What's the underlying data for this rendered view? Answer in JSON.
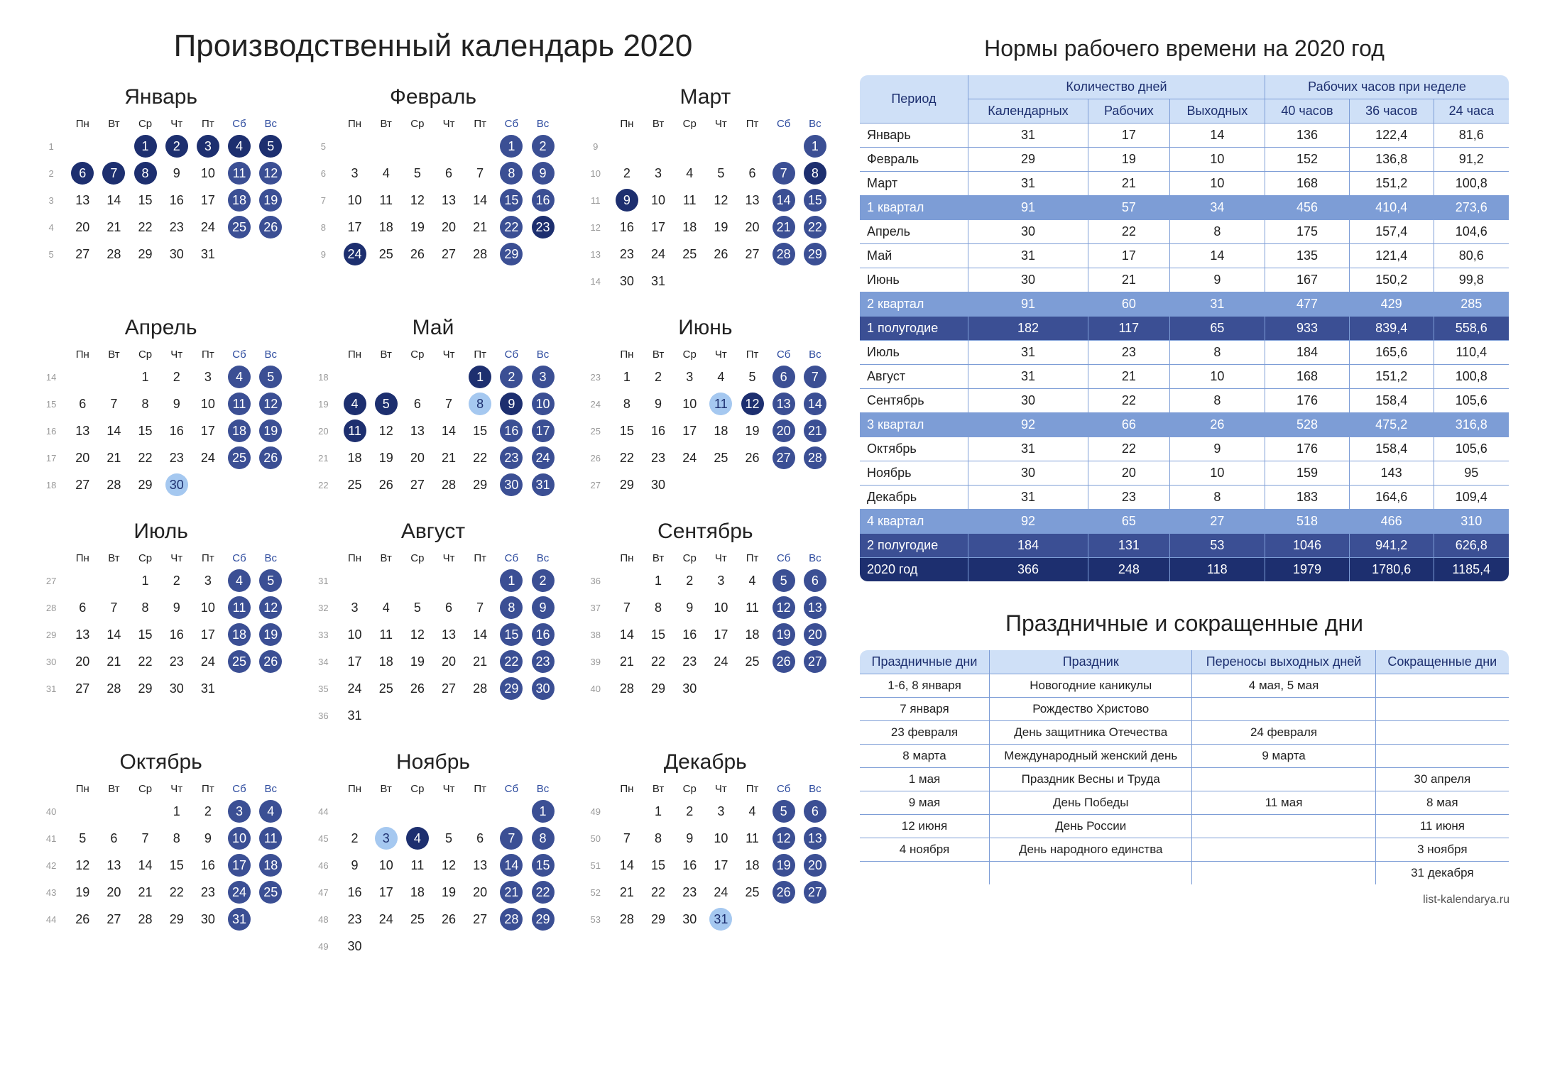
{
  "title": "Производственный календарь 2020",
  "normsTitle": "Нормы рабочего времени на 2020 год",
  "holidaysTitle": "Праздничные и сокращенные дни",
  "footer": "list-kalendarya.ru",
  "dowHeaders": [
    "Пн",
    "Вт",
    "Ср",
    "Чт",
    "Пт",
    "Сб",
    "Вс"
  ],
  "months": [
    {
      "name": "Январь",
      "firstDow": 2,
      "days": 31,
      "weekStart": 1,
      "holiday": [
        1,
        2,
        3,
        4,
        5,
        6,
        7,
        8
      ],
      "short": [],
      "weekend": [
        11,
        12,
        18,
        19,
        25,
        26
      ]
    },
    {
      "name": "Февраль",
      "firstDow": 5,
      "days": 29,
      "weekStart": 5,
      "holiday": [
        23,
        24
      ],
      "short": [],
      "weekend": [
        1,
        2,
        8,
        9,
        15,
        16,
        22,
        29
      ]
    },
    {
      "name": "Март",
      "firstDow": 6,
      "days": 31,
      "weekStart": 9,
      "holiday": [
        8,
        9
      ],
      "short": [],
      "weekend": [
        1,
        7,
        14,
        15,
        21,
        22,
        28,
        29
      ]
    },
    {
      "name": "Апрель",
      "firstDow": 2,
      "days": 30,
      "weekStart": 14,
      "holiday": [],
      "short": [
        30
      ],
      "weekend": [
        4,
        5,
        11,
        12,
        18,
        19,
        25,
        26
      ]
    },
    {
      "name": "Май",
      "firstDow": 4,
      "days": 31,
      "weekStart": 18,
      "holiday": [
        1,
        4,
        5,
        9,
        11
      ],
      "short": [
        8
      ],
      "weekend": [
        2,
        3,
        10,
        16,
        17,
        23,
        24,
        30,
        31
      ]
    },
    {
      "name": "Июнь",
      "firstDow": 0,
      "days": 30,
      "weekStart": 23,
      "holiday": [
        12
      ],
      "short": [
        11
      ],
      "weekend": [
        6,
        7,
        13,
        14,
        20,
        21,
        27,
        28
      ]
    },
    {
      "name": "Июль",
      "firstDow": 2,
      "days": 31,
      "weekStart": 27,
      "holiday": [],
      "short": [],
      "weekend": [
        4,
        5,
        11,
        12,
        18,
        19,
        25,
        26
      ]
    },
    {
      "name": "Август",
      "firstDow": 5,
      "days": 31,
      "weekStart": 31,
      "holiday": [],
      "short": [],
      "weekend": [
        1,
        2,
        8,
        9,
        15,
        16,
        22,
        23,
        29,
        30
      ]
    },
    {
      "name": "Сентябрь",
      "firstDow": 1,
      "days": 30,
      "weekStart": 36,
      "holiday": [],
      "short": [],
      "weekend": [
        5,
        6,
        12,
        13,
        19,
        20,
        26,
        27
      ]
    },
    {
      "name": "Октябрь",
      "firstDow": 3,
      "days": 31,
      "weekStart": 40,
      "holiday": [],
      "short": [],
      "weekend": [
        3,
        4,
        10,
        11,
        17,
        18,
        24,
        25,
        31
      ]
    },
    {
      "name": "Ноябрь",
      "firstDow": 6,
      "days": 30,
      "weekStart": 44,
      "holiday": [
        4
      ],
      "short": [
        3
      ],
      "weekend": [
        1,
        7,
        8,
        14,
        15,
        21,
        22,
        28,
        29
      ]
    },
    {
      "name": "Декабрь",
      "firstDow": 1,
      "days": 31,
      "weekStart": 49,
      "holiday": [],
      "short": [
        31
      ],
      "weekend": [
        5,
        6,
        12,
        13,
        19,
        20,
        26,
        27
      ]
    }
  ],
  "normsHeaders": {
    "period": "Период",
    "daysGroup": "Количество дней",
    "hoursGroup": "Рабочих часов при неделе",
    "cal": "Календарных",
    "work": "Рабочих",
    "off": "Выходных",
    "h40": "40 часов",
    "h36": "36 часов",
    "h24": "24 часа"
  },
  "norms": [
    {
      "t": "",
      "period": "Январь",
      "cal": "31",
      "work": "17",
      "off": "14",
      "h40": "136",
      "h36": "122,4",
      "h24": "81,6"
    },
    {
      "t": "",
      "period": "Февраль",
      "cal": "29",
      "work": "19",
      "off": "10",
      "h40": "152",
      "h36": "136,8",
      "h24": "91,2"
    },
    {
      "t": "",
      "period": "Март",
      "cal": "31",
      "work": "21",
      "off": "10",
      "h40": "168",
      "h36": "151,2",
      "h24": "100,8"
    },
    {
      "t": "q",
      "period": "1 квартал",
      "cal": "91",
      "work": "57",
      "off": "34",
      "h40": "456",
      "h36": "410,4",
      "h24": "273,6"
    },
    {
      "t": "",
      "period": "Апрель",
      "cal": "30",
      "work": "22",
      "off": "8",
      "h40": "175",
      "h36": "157,4",
      "h24": "104,6"
    },
    {
      "t": "",
      "period": "Май",
      "cal": "31",
      "work": "17",
      "off": "14",
      "h40": "135",
      "h36": "121,4",
      "h24": "80,6"
    },
    {
      "t": "",
      "period": "Июнь",
      "cal": "30",
      "work": "21",
      "off": "9",
      "h40": "167",
      "h36": "150,2",
      "h24": "99,8"
    },
    {
      "t": "q",
      "period": "2 квартал",
      "cal": "91",
      "work": "60",
      "off": "31",
      "h40": "477",
      "h36": "429",
      "h24": "285"
    },
    {
      "t": "half",
      "period": "1 полугодие",
      "cal": "182",
      "work": "117",
      "off": "65",
      "h40": "933",
      "h36": "839,4",
      "h24": "558,6"
    },
    {
      "t": "",
      "period": "Июль",
      "cal": "31",
      "work": "23",
      "off": "8",
      "h40": "184",
      "h36": "165,6",
      "h24": "110,4"
    },
    {
      "t": "",
      "period": "Август",
      "cal": "31",
      "work": "21",
      "off": "10",
      "h40": "168",
      "h36": "151,2",
      "h24": "100,8"
    },
    {
      "t": "",
      "period": "Сентябрь",
      "cal": "30",
      "work": "22",
      "off": "8",
      "h40": "176",
      "h36": "158,4",
      "h24": "105,6"
    },
    {
      "t": "q",
      "period": "3 квартал",
      "cal": "92",
      "work": "66",
      "off": "26",
      "h40": "528",
      "h36": "475,2",
      "h24": "316,8"
    },
    {
      "t": "",
      "period": "Октябрь",
      "cal": "31",
      "work": "22",
      "off": "9",
      "h40": "176",
      "h36": "158,4",
      "h24": "105,6"
    },
    {
      "t": "",
      "period": "Ноябрь",
      "cal": "30",
      "work": "20",
      "off": "10",
      "h40": "159",
      "h36": "143",
      "h24": "95"
    },
    {
      "t": "",
      "period": "Декабрь",
      "cal": "31",
      "work": "23",
      "off": "8",
      "h40": "183",
      "h36": "164,6",
      "h24": "109,4"
    },
    {
      "t": "q",
      "period": "4 квартал",
      "cal": "92",
      "work": "65",
      "off": "27",
      "h40": "518",
      "h36": "466",
      "h24": "310"
    },
    {
      "t": "half",
      "period": "2 полугодие",
      "cal": "184",
      "work": "131",
      "off": "53",
      "h40": "1046",
      "h36": "941,2",
      "h24": "626,8"
    },
    {
      "t": "year",
      "period": "2020 год",
      "cal": "366",
      "work": "248",
      "off": "118",
      "h40": "1979",
      "h36": "1780,6",
      "h24": "1185,4"
    }
  ],
  "holidaysHeaders": {
    "days": "Праздничные дни",
    "name": "Праздник",
    "moved": "Переносы выходных дней",
    "short": "Сокращенные дни"
  },
  "holidays": [
    {
      "days": "1-6, 8 января",
      "name": "Новогодние каникулы",
      "moved": "4 мая, 5 мая",
      "short": ""
    },
    {
      "days": "7 января",
      "name": "Рождество Христово",
      "moved": "",
      "short": ""
    },
    {
      "days": "23 февраля",
      "name": "День защитника Отечества",
      "moved": "24 февраля",
      "short": ""
    },
    {
      "days": "8 марта",
      "name": "Международный женский день",
      "moved": "9 марта",
      "short": ""
    },
    {
      "days": "1 мая",
      "name": "Праздник Весны и Труда",
      "moved": "",
      "short": "30 апреля"
    },
    {
      "days": "9 мая",
      "name": "День Победы",
      "moved": "11 мая",
      "short": "8 мая"
    },
    {
      "days": "12 июня",
      "name": "День России",
      "moved": "",
      "short": "11 июня"
    },
    {
      "days": "4 ноября",
      "name": "День народного единства",
      "moved": "",
      "short": "3 ноября"
    },
    {
      "days": "",
      "name": "",
      "moved": "",
      "short": "31 декабря"
    }
  ]
}
